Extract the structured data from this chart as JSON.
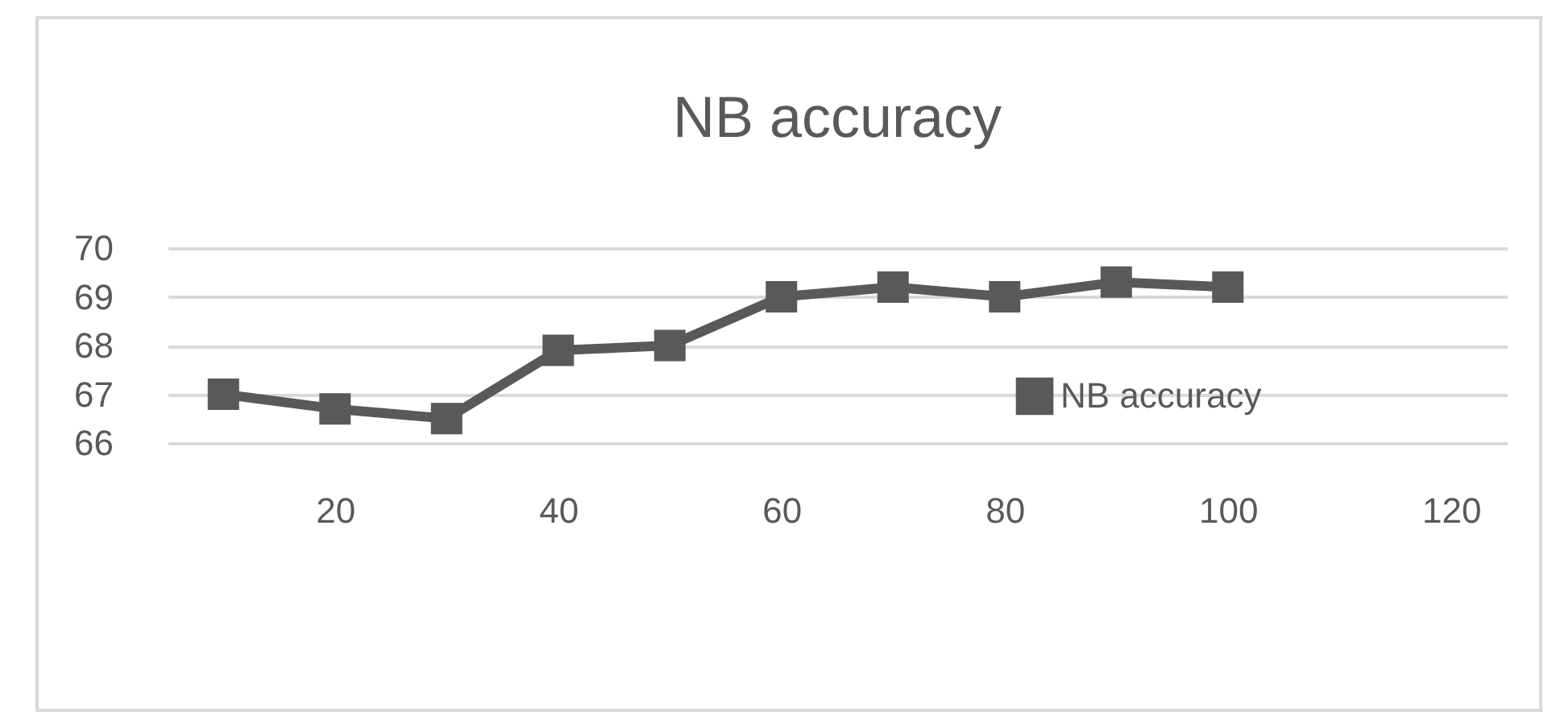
{
  "chart_data": {
    "type": "line",
    "title": "NB accuracy",
    "x": [
      10,
      20,
      30,
      40,
      50,
      60,
      70,
      80,
      90,
      100
    ],
    "series": [
      {
        "name": "NB accuracy",
        "color": "#595959",
        "values": [
          67.0,
          66.7,
          66.5,
          67.9,
          68.0,
          69.0,
          69.2,
          69.0,
          69.3,
          69.2
        ]
      }
    ],
    "xlim": [
      5,
      125
    ],
    "xticks": [
      20,
      40,
      60,
      80,
      100,
      120
    ],
    "ylim": [
      66,
      70
    ],
    "yticks": [
      66,
      67,
      68,
      69,
      70
    ],
    "grid": "y",
    "legend": "right",
    "marker": "square",
    "line_style": "solid"
  }
}
